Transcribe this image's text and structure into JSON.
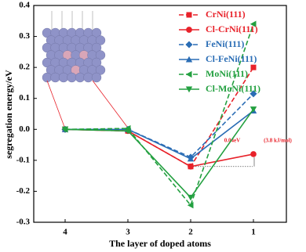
{
  "chart_data": {
    "type": "line",
    "xlabel": "The layer of doped atoms",
    "ylabel": "segregation energy/eV",
    "categories": [
      "4",
      "3",
      "2",
      "1"
    ],
    "series": [
      {
        "name": "CrNi(111)",
        "color": "#e8222a",
        "linestyle": "dashed",
        "marker": "square",
        "values": [
          0,
          -0.005,
          -0.12,
          0.2
        ]
      },
      {
        "name": "Cl-CrNi(111)",
        "color": "#e8222a",
        "linestyle": "solid",
        "marker": "circle",
        "values": [
          0,
          -0.005,
          -0.12,
          -0.08
        ]
      },
      {
        "name": "FeNi(111)",
        "color": "#2a6db5",
        "linestyle": "dashed",
        "marker": "diamond",
        "values": [
          0,
          0,
          -0.09,
          0.115
        ]
      },
      {
        "name": "Cl-FeNi(111)",
        "color": "#2a6db5",
        "linestyle": "solid",
        "marker": "triangle-up",
        "values": [
          0,
          0,
          -0.095,
          0.06
        ]
      },
      {
        "name": "MoNi(111)",
        "color": "#23a040",
        "linestyle": "dashed",
        "marker": "triangle-left",
        "values": [
          0,
          0.003,
          -0.245,
          0.34
        ]
      },
      {
        "name": "Cl-MoNi(111)",
        "color": "#23a040",
        "linestyle": "solid",
        "marker": "triangle-down",
        "values": [
          0,
          -0.005,
          -0.22,
          0.065
        ]
      }
    ],
    "ylim": [
      -0.3,
      0.4
    ],
    "yticks": [
      -0.3,
      -0.2,
      -0.1,
      {
        "value": 0,
        "label": "0.0"
      },
      0.1,
      0.2,
      0.3,
      0.4
    ],
    "legend": "upper right",
    "annotations": [
      "0.04eV",
      "(3.8 kJ/mol)"
    ]
  }
}
